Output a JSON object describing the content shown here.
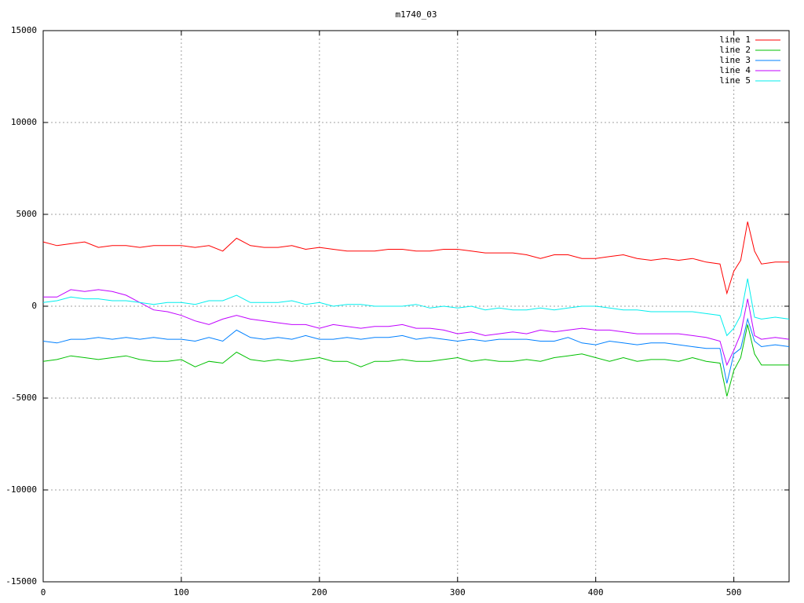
{
  "chart_data": {
    "type": "line",
    "title": "m1740_03",
    "x": [
      0,
      10,
      20,
      30,
      40,
      50,
      60,
      70,
      80,
      90,
      100,
      110,
      120,
      130,
      140,
      150,
      160,
      170,
      180,
      190,
      200,
      210,
      220,
      230,
      240,
      250,
      260,
      270,
      280,
      290,
      300,
      310,
      320,
      330,
      340,
      350,
      360,
      370,
      380,
      390,
      400,
      410,
      420,
      430,
      440,
      450,
      460,
      470,
      480,
      490,
      495,
      500,
      505,
      510,
      515,
      520,
      530,
      540
    ],
    "series": [
      {
        "name": "line 1",
        "color": "#ff0000",
        "values": [
          3500,
          3300,
          3400,
          3500,
          3200,
          3300,
          3300,
          3200,
          3300,
          3300,
          3300,
          3200,
          3300,
          3000,
          3700,
          3300,
          3200,
          3200,
          3300,
          3100,
          3200,
          3100,
          3000,
          3000,
          3000,
          3100,
          3100,
          3000,
          3000,
          3100,
          3100,
          3000,
          2900,
          2900,
          2900,
          2800,
          2600,
          2800,
          2800,
          2600,
          2600,
          2700,
          2800,
          2600,
          2500,
          2600,
          2500,
          2600,
          2400,
          2300,
          700,
          1900,
          2500,
          4600,
          3000,
          2300,
          2400,
          2400
        ]
      },
      {
        "name": "line 2",
        "color": "#00c000",
        "values": [
          -3000,
          -2900,
          -2700,
          -2800,
          -2900,
          -2800,
          -2700,
          -2900,
          -3000,
          -3000,
          -2900,
          -3300,
          -3000,
          -3100,
          -2500,
          -2900,
          -3000,
          -2900,
          -3000,
          -2900,
          -2800,
          -3000,
          -3000,
          -3300,
          -3000,
          -3000,
          -2900,
          -3000,
          -3000,
          -2900,
          -2800,
          -3000,
          -2900,
          -3000,
          -3000,
          -2900,
          -3000,
          -2800,
          -2700,
          -2600,
          -2800,
          -3000,
          -2800,
          -3000,
          -2900,
          -2900,
          -3000,
          -2800,
          -3000,
          -3100,
          -4900,
          -3500,
          -2800,
          -1000,
          -2600,
          -3200,
          -3200,
          -3200
        ]
      },
      {
        "name": "line 3",
        "color": "#0080ff",
        "values": [
          -1900,
          -2000,
          -1800,
          -1800,
          -1700,
          -1800,
          -1700,
          -1800,
          -1700,
          -1800,
          -1800,
          -1900,
          -1700,
          -1900,
          -1300,
          -1700,
          -1800,
          -1700,
          -1800,
          -1600,
          -1800,
          -1800,
          -1700,
          -1800,
          -1700,
          -1700,
          -1600,
          -1800,
          -1700,
          -1800,
          -1900,
          -1800,
          -1900,
          -1800,
          -1800,
          -1800,
          -1900,
          -1900,
          -1700,
          -2000,
          -2100,
          -1900,
          -2000,
          -2100,
          -2000,
          -2000,
          -2100,
          -2200,
          -2300,
          -2300,
          -4200,
          -2600,
          -2300,
          -700,
          -1900,
          -2200,
          -2100,
          -2200
        ]
      },
      {
        "name": "line 4",
        "color": "#c000ff",
        "values": [
          500,
          500,
          900,
          800,
          900,
          800,
          600,
          200,
          -200,
          -300,
          -500,
          -800,
          -1000,
          -700,
          -500,
          -700,
          -800,
          -900,
          -1000,
          -1000,
          -1200,
          -1000,
          -1100,
          -1200,
          -1100,
          -1100,
          -1000,
          -1200,
          -1200,
          -1300,
          -1500,
          -1400,
          -1600,
          -1500,
          -1400,
          -1500,
          -1300,
          -1400,
          -1300,
          -1200,
          -1300,
          -1300,
          -1400,
          -1500,
          -1500,
          -1500,
          -1500,
          -1600,
          -1700,
          -1900,
          -3200,
          -2400,
          -1500,
          400,
          -1600,
          -1800,
          -1700,
          -1800
        ]
      },
      {
        "name": "line 5",
        "color": "#00eeee",
        "values": [
          200,
          300,
          500,
          400,
          400,
          300,
          300,
          200,
          100,
          200,
          200,
          100,
          300,
          300,
          600,
          200,
          200,
          200,
          300,
          100,
          200,
          0,
          100,
          100,
          0,
          0,
          0,
          100,
          -100,
          0,
          -100,
          0,
          -200,
          -100,
          -200,
          -200,
          -100,
          -200,
          -100,
          0,
          0,
          -100,
          -200,
          -200,
          -300,
          -300,
          -300,
          -300,
          -400,
          -500,
          -1600,
          -1200,
          -500,
          1500,
          -600,
          -700,
          -600,
          -700
        ]
      }
    ],
    "xlim": [
      0,
      540
    ],
    "xticks": [
      0,
      100,
      200,
      300,
      400,
      500
    ],
    "ylim": [
      -15000,
      15000
    ],
    "yticks": [
      -15000,
      -10000,
      -5000,
      0,
      5000,
      10000,
      15000
    ],
    "grid": true,
    "legend": "top-right"
  }
}
